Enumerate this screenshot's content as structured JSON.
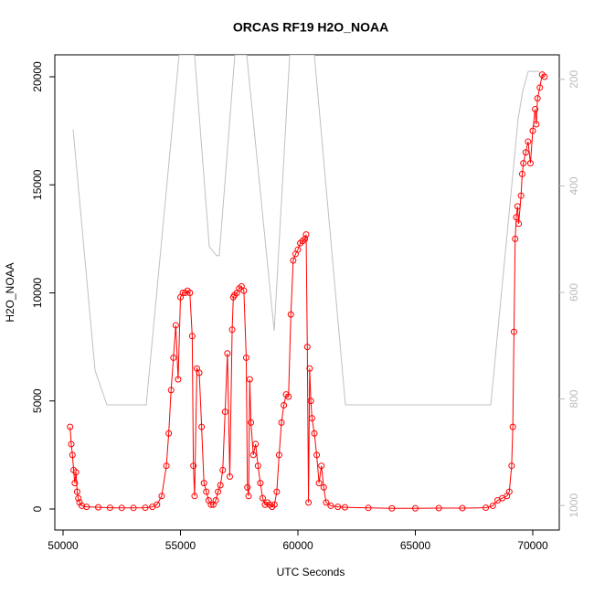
{
  "chart_data": {
    "type": "line",
    "title": "ORCAS RF19 H2O_NOAA",
    "x_label": "UTC Seconds",
    "y_label": "H2O_NOAA",
    "xlim": [
      49650,
      71128
    ],
    "ylim": [
      -973,
      21015
    ],
    "y2lim": [
      1046,
      154
    ],
    "xticks": [
      50000,
      55000,
      60000,
      65000,
      70000
    ],
    "yticks": [
      0,
      5000,
      10000,
      15000,
      20000
    ],
    "y2ticks": [
      200,
      400,
      600,
      800,
      1000
    ],
    "series": [
      {
        "color": "#ff0000",
        "markers": true,
        "x": [
          50300,
          50350,
          50400,
          50450,
          50500,
          50550,
          50600,
          50650,
          50700,
          50800,
          51000,
          51500,
          52000,
          52500,
          53000,
          53500,
          53800,
          54000,
          54200,
          54400,
          54500,
          54600,
          54700,
          54800,
          54900,
          55000,
          55100,
          55200,
          55300,
          55400,
          55500,
          55550,
          55600,
          55700,
          55800,
          55900,
          56000,
          56100,
          56200,
          56300,
          56400,
          56500,
          56600,
          56700,
          56800,
          56900,
          57000,
          57100,
          57200,
          57250,
          57300,
          57400,
          57500,
          57600,
          57700,
          57800,
          57850,
          57900,
          57950,
          58000,
          58100,
          58200,
          58300,
          58400,
          58500,
          58600,
          58700,
          58800,
          58900,
          59000,
          59100,
          59200,
          59300,
          59400,
          59500,
          59600,
          59700,
          59800,
          59900,
          60000,
          60100,
          60200,
          60300,
          60350,
          60400,
          60450,
          60500,
          60550,
          60600,
          60700,
          60800,
          60900,
          61000,
          61100,
          61200,
          61400,
          61700,
          62000,
          63000,
          64000,
          65000,
          66000,
          67000,
          68000,
          68300,
          68500,
          68700,
          68900,
          69000,
          69100,
          69150,
          69200,
          69250,
          69300,
          69350,
          69400,
          69500,
          69550,
          69600,
          69700,
          69800,
          69900,
          70000,
          70100,
          70150,
          70200,
          70300,
          70400,
          70500
        ],
        "values": [
          3800,
          3000,
          2500,
          1800,
          1200,
          1700,
          800,
          500,
          300,
          150,
          100,
          80,
          60,
          50,
          50,
          60,
          100,
          200,
          600,
          2000,
          3500,
          5500,
          7000,
          8500,
          6000,
          9800,
          10000,
          10000,
          10100,
          10000,
          8000,
          2000,
          600,
          6500,
          6300,
          3800,
          1200,
          800,
          400,
          200,
          200,
          400,
          800,
          1100,
          1800,
          4500,
          7200,
          1500,
          8300,
          9800,
          9900,
          10000,
          10200,
          10300,
          10100,
          7000,
          1000,
          600,
          6000,
          4000,
          2500,
          3000,
          2000,
          1200,
          500,
          200,
          300,
          200,
          100,
          200,
          800,
          2500,
          4000,
          4800,
          5300,
          5200,
          9000,
          11500,
          11800,
          12000,
          12300,
          12400,
          12500,
          12700,
          7500,
          300,
          6500,
          5000,
          4200,
          3500,
          2500,
          1200,
          2000,
          1000,
          300,
          150,
          100,
          80,
          50,
          30,
          30,
          40,
          40,
          60,
          150,
          400,
          500,
          600,
          800,
          2000,
          3800,
          8200,
          12500,
          13500,
          14000,
          13200,
          14500,
          15500,
          16000,
          16500,
          17000,
          16000,
          17500,
          18500,
          17800,
          19000,
          19500,
          20100,
          20000
        ]
      },
      {
        "color": "#c0c0c0",
        "axis": "y2",
        "markers": false,
        "x": [
          50428,
          51362,
          51868,
          53540,
          54940,
          55600,
          56226,
          56537,
          56650,
          57315,
          57820,
          58990,
          59650,
          60700,
          62023,
          68210,
          69377,
          69572,
          69805,
          70272
        ],
        "values": [
          294,
          746,
          811,
          811,
          154,
          154,
          514,
          531,
          531,
          154,
          154,
          672,
          154,
          154,
          811,
          811,
          274,
          222,
          185,
          185
        ]
      }
    ]
  }
}
